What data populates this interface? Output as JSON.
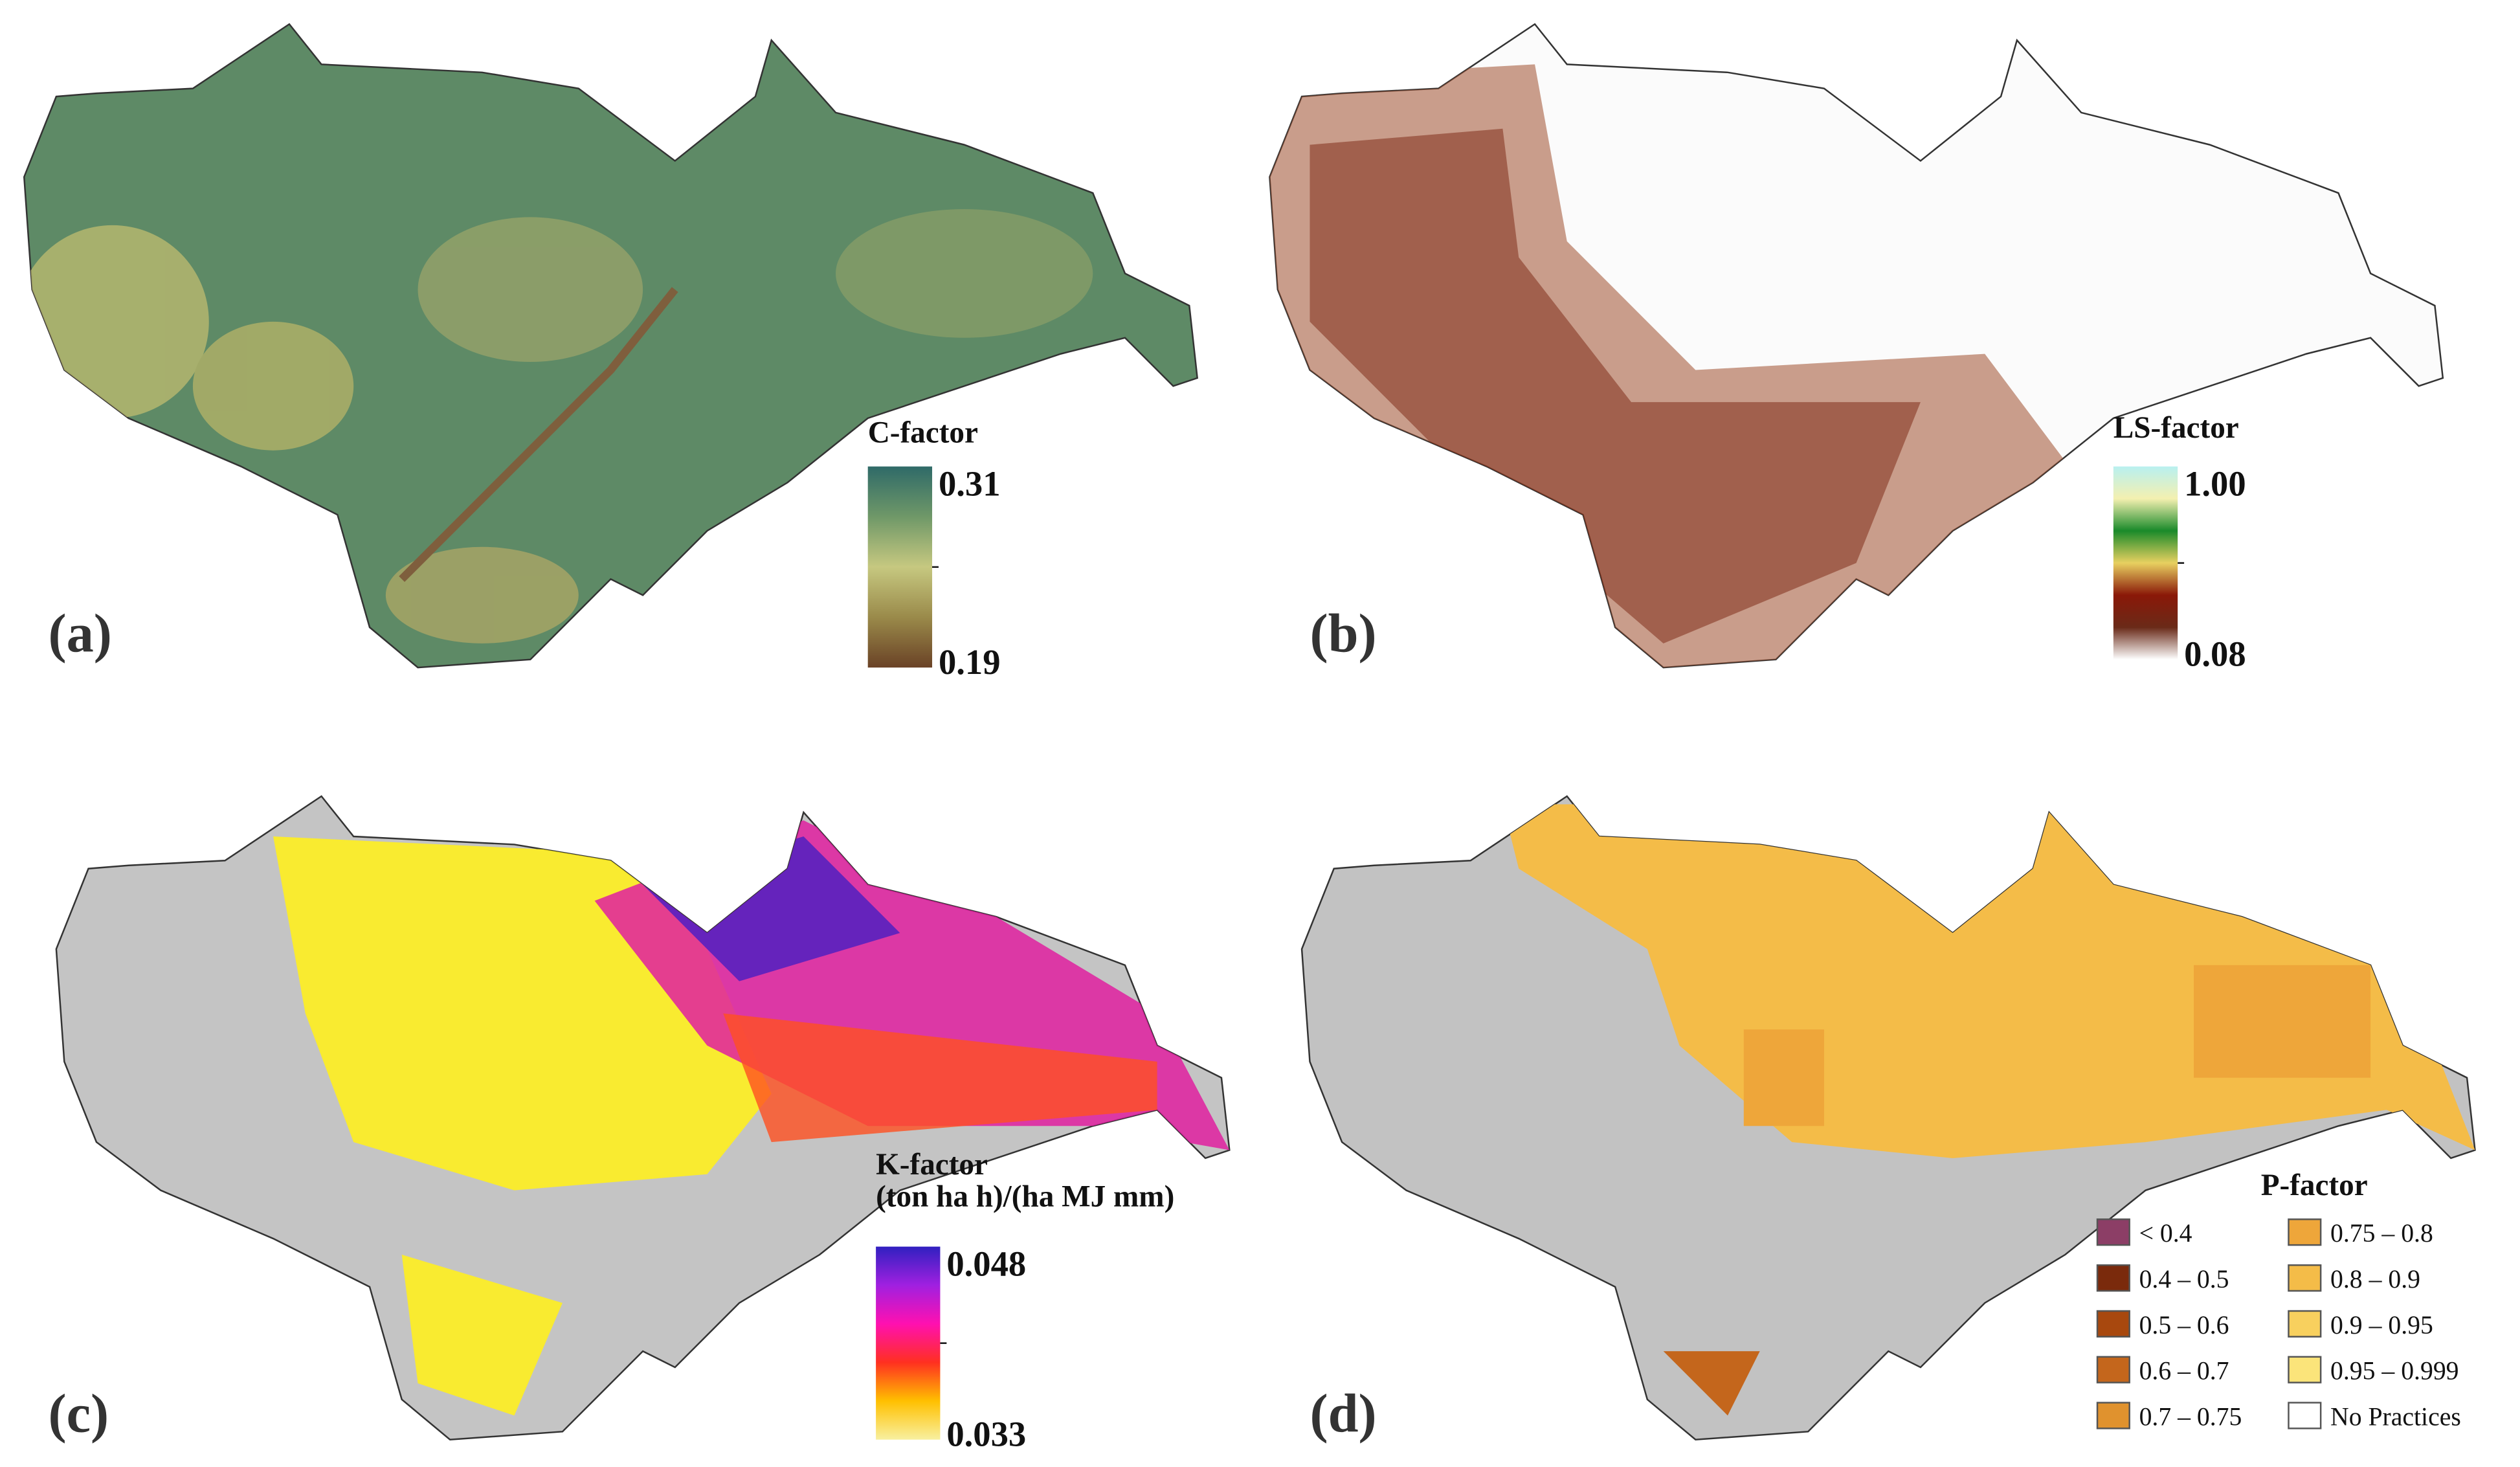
{
  "panels": [
    {
      "label": "(a)",
      "legend": {
        "title": "C-factor",
        "max": "0.31",
        "min": "0.19",
        "colors": [
          "#2f6a68",
          "#6f9868",
          "#c6c880",
          "#9a8a4a",
          "#6a4226"
        ]
      }
    },
    {
      "label": "(b)",
      "legend": {
        "title": "LS-factor",
        "max": "1.00",
        "min": "0.08",
        "colors": [
          "#b8f0f0",
          "#f4f0b0",
          "#1a8a2a",
          "#e8d060",
          "#8a1808",
          "#6a2a18",
          "#ffffff"
        ]
      }
    },
    {
      "label": "(c)",
      "legend": {
        "title": "K-factor",
        "subtitle": "(ton ha h)/(ha MJ mm)",
        "max": "0.048",
        "min": "0.033",
        "colors": [
          "#3020c0",
          "#a020e0",
          "#ff10b0",
          "#ff3020",
          "#ffc000",
          "#f8f0a0"
        ]
      }
    },
    {
      "label": "(d)",
      "legend": {
        "title": "P-factor",
        "classes": [
          {
            "label": "< 0.4",
            "color": "#8c3e66"
          },
          {
            "label": "0.4 – 0.5",
            "color": "#7a2a0c"
          },
          {
            "label": "0.5 – 0.6",
            "color": "#a8480e"
          },
          {
            "label": "0.6 – 0.7",
            "color": "#c4661c"
          },
          {
            "label": "0.7 – 0.75",
            "color": "#e0922e"
          },
          {
            "label": "0.75 – 0.8",
            "color": "#eea63a"
          },
          {
            "label": "0.8 – 0.9",
            "color": "#f4bc48"
          },
          {
            "label": "0.9 – 0.95",
            "color": "#f8d05e"
          },
          {
            "label": "0.95 – 0.999",
            "color": "#fbe47a"
          },
          {
            "label": "No Practices",
            "color": "#ffffff"
          }
        ]
      }
    }
  ]
}
